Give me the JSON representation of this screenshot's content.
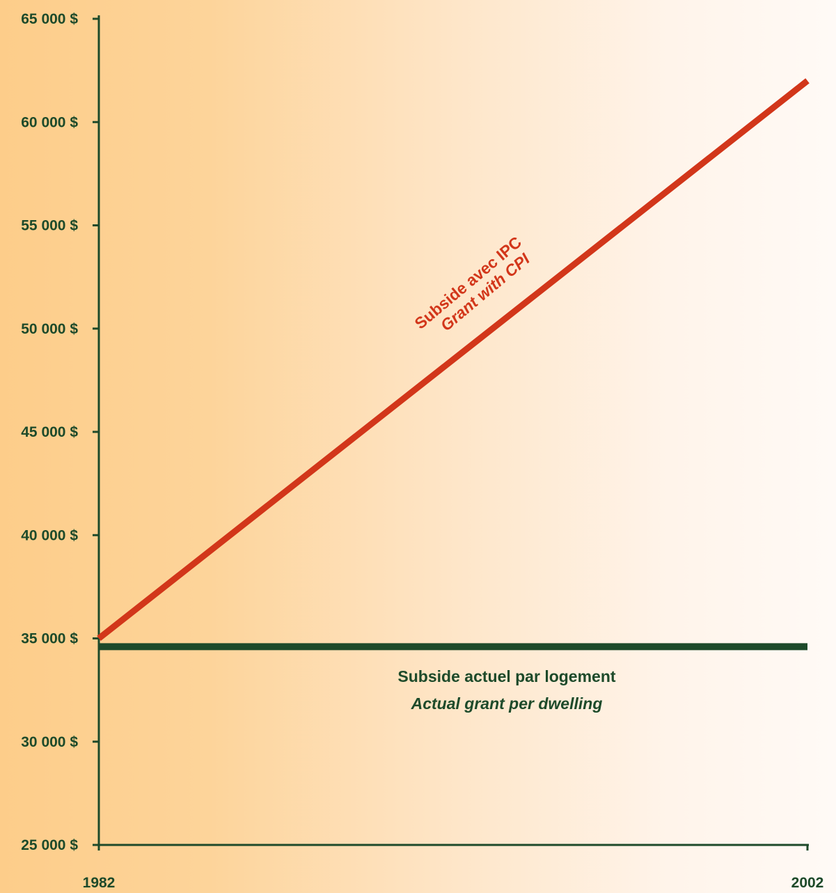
{
  "chart_data": {
    "type": "line",
    "x": [
      1982,
      2002
    ],
    "xlim": [
      1982,
      2002
    ],
    "x_tick_labels": [
      "1982",
      "2002"
    ],
    "ylim": [
      25000,
      65000
    ],
    "y_ticks": [
      25000,
      30000,
      35000,
      40000,
      45000,
      50000,
      55000,
      60000,
      65000
    ],
    "y_tick_labels": [
      "25 000 $",
      "30 000 $",
      "35 000 $",
      "40 000 $",
      "45 000 $",
      "50 000 $",
      "55 000 $",
      "60 000 $",
      "65 000 $"
    ],
    "series": [
      {
        "name": "Subside avec IPC",
        "name_en": "Grant with CPI",
        "values": [
          35000,
          62000
        ],
        "color": "#d2361a"
      },
      {
        "name": "Subside actuel  par logement",
        "name_en": "Actual grant per dwelling",
        "values": [
          34600,
          34600
        ],
        "color": "#1d4a2a"
      }
    ],
    "grid": false,
    "legend": "inline labels",
    "axis_color": "#1d4a2a"
  }
}
